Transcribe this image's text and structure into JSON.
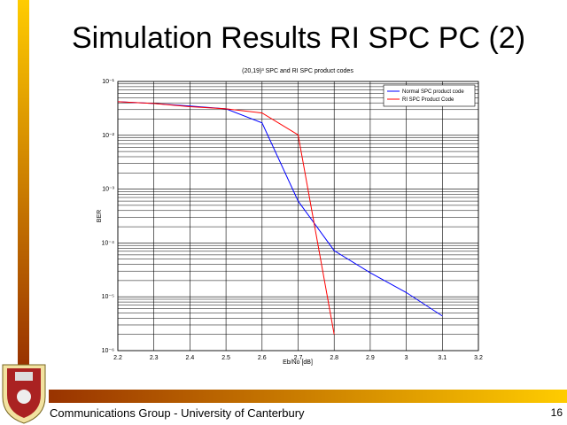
{
  "slide": {
    "title": "Simulation Results RI SPC PC (2)",
    "footer": "Communications Group - University of Canterbury",
    "page": "16"
  },
  "chart_data": {
    "type": "line",
    "title": "(20,19)³ SPC and RI SPC product codes",
    "x_label": "Eb/No [dB]",
    "y_label": "BER",
    "log_y": true,
    "grid": true,
    "legend": "top-right",
    "xlim": [
      2.2,
      3.2
    ],
    "xticks": [
      2.2,
      2.3,
      2.4,
      2.5,
      2.6,
      2.7,
      2.8,
      2.9,
      3,
      3.1,
      3.2
    ],
    "ylim": [
      1e-06,
      0.1
    ],
    "yticks": [
      {
        "value": 1e-06,
        "label": "10⁻⁶"
      },
      {
        "value": 1e-05,
        "label": "10⁻⁵"
      },
      {
        "value": 0.0001,
        "label": "10⁻⁴"
      },
      {
        "value": 0.001,
        "label": "10⁻³"
      },
      {
        "value": 0.01,
        "label": "10⁻²"
      },
      {
        "value": 0.1,
        "label": "10⁻¹"
      }
    ],
    "series": [
      {
        "name": "Normal SPC product code",
        "color": "#0000ff",
        "x": [
          2.2,
          2.3,
          2.4,
          2.5,
          2.6,
          2.7,
          2.8,
          2.9,
          3.0,
          3.1
        ],
        "values": [
          0.042,
          0.039,
          0.035,
          0.031,
          0.017,
          0.0006,
          7.2e-05,
          2.8e-05,
          1.2e-05,
          4.4e-06
        ]
      },
      {
        "name": "RI SPC Product Code",
        "color": "#ff0000",
        "x": [
          2.2,
          2.3,
          2.4,
          2.5,
          2.6,
          2.7,
          2.8
        ],
        "values": [
          0.042,
          0.039,
          0.034,
          0.031,
          0.026,
          0.0102,
          2e-06
        ]
      }
    ]
  }
}
